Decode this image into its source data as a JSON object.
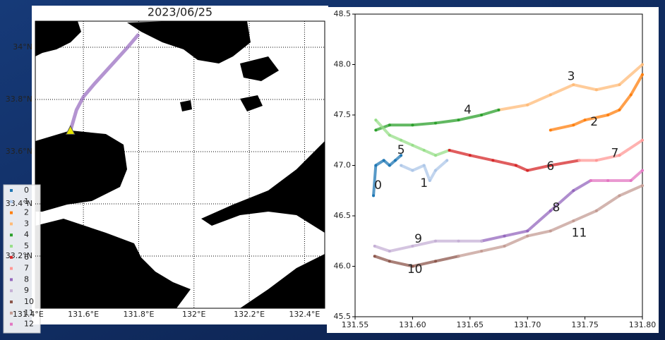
{
  "charts": [
    {
      "type": "map",
      "title": "2023/06/25",
      "xlim": [
        131.426,
        132.473
      ],
      "ylim": [
        33.0,
        34.1
      ],
      "xticks": [
        {
          "value": 131.4,
          "label": "131.4°E"
        },
        {
          "value": 131.6,
          "label": "131.6°E"
        },
        {
          "value": 131.8,
          "label": "131.8°E"
        },
        {
          "value": 132.0,
          "label": "132°E"
        },
        {
          "value": 132.2,
          "label": "132.2°E"
        },
        {
          "value": 132.4,
          "label": "132.4°E"
        }
      ],
      "yticks": [
        {
          "value": 33.2,
          "label": "33.2°N"
        },
        {
          "value": 33.4,
          "label": "33.4°N"
        },
        {
          "value": 33.6,
          "label": "33.6°N"
        },
        {
          "value": 33.8,
          "label": "33.8°N"
        },
        {
          "value": 34.0,
          "label": "34°N"
        }
      ],
      "grid": true,
      "track": {
        "color": "#9467bd",
        "x": [
          131.553,
          131.575,
          131.6,
          131.64,
          131.7,
          131.76,
          131.8
        ],
        "y": [
          33.68,
          33.76,
          33.81,
          33.86,
          33.93,
          34.0,
          34.05
        ]
      },
      "start": {
        "color": "#e8e800",
        "x": 131.553,
        "y": 33.68
      },
      "series": [
        {
          "name": "0",
          "color": "#1f77b4"
        },
        {
          "name": "1",
          "color": "#aec7e8"
        },
        {
          "name": "2",
          "color": "#ff7f0e"
        },
        {
          "name": "3",
          "color": "#ffbb78"
        },
        {
          "name": "4",
          "color": "#2ca02c"
        },
        {
          "name": "5",
          "color": "#98df8a"
        },
        {
          "name": "6",
          "color": "#d62728"
        },
        {
          "name": "7",
          "color": "#ff9896"
        },
        {
          "name": "8",
          "color": "#9467bd"
        },
        {
          "name": "9",
          "color": "#c5b0d5"
        },
        {
          "name": "10",
          "color": "#8c564b"
        },
        {
          "name": "11",
          "color": "#c49c94"
        },
        {
          "name": "12",
          "color": "#e377c2"
        }
      ]
    },
    {
      "type": "scatter",
      "xlim": [
        131.55,
        131.8
      ],
      "ylim": [
        45.5,
        48.5
      ],
      "xticks": [
        131.55,
        {
          "value": 131.6,
          "label": "131.60"
        },
        131.65,
        {
          "value": 131.7,
          "label": "131.70"
        },
        131.75,
        {
          "value": 131.8,
          "label": "131.80"
        }
      ],
      "yticks": [
        45.5,
        {
          "value": 46,
          "label": "46.0"
        },
        46.5,
        {
          "value": 47,
          "label": "47.0"
        },
        47.5,
        {
          "value": 48,
          "label": "48.0"
        },
        48.5
      ],
      "series": [
        {
          "color": "#1f77b4",
          "x": [
            131.566,
            131.568,
            131.575,
            131.58,
            131.585,
            131.59
          ],
          "values": [
            46.7,
            47.0,
            47.05,
            47.0,
            47.05,
            47.1
          ]
        },
        {
          "color": "#aec7e8",
          "x": [
            131.59,
            131.6,
            131.61,
            131.615,
            131.62,
            131.63
          ],
          "values": [
            47.0,
            46.95,
            47.0,
            46.85,
            46.95,
            47.05
          ]
        },
        {
          "color": "#ff7f0e",
          "x": [
            131.72,
            131.74,
            131.75,
            131.77,
            131.78,
            131.79,
            131.8
          ],
          "values": [
            47.35,
            47.4,
            47.45,
            47.5,
            47.55,
            47.7,
            47.9
          ]
        },
        {
          "color": "#ffbb78",
          "x": [
            131.675,
            131.7,
            131.72,
            131.74,
            131.76,
            131.78,
            131.8
          ],
          "values": [
            47.55,
            47.6,
            47.7,
            47.8,
            47.75,
            47.8,
            48.0
          ]
        },
        {
          "color": "#2ca02c",
          "x": [
            131.568,
            131.58,
            131.6,
            131.62,
            131.64,
            131.66,
            131.675
          ],
          "values": [
            47.35,
            47.4,
            47.4,
            47.42,
            47.45,
            47.5,
            47.55
          ]
        },
        {
          "color": "#98df8a",
          "x": [
            131.568,
            131.58,
            131.59,
            131.6,
            131.61,
            131.62,
            131.632
          ],
          "values": [
            47.45,
            47.3,
            47.25,
            47.2,
            47.15,
            47.1,
            47.15
          ]
        },
        {
          "color": "#d62728",
          "x": [
            131.632,
            131.65,
            131.67,
            131.69,
            131.7,
            131.72,
            131.745
          ],
          "values": [
            47.15,
            47.1,
            47.05,
            47.0,
            46.95,
            47.0,
            47.05
          ]
        },
        {
          "color": "#ff9896",
          "x": [
            131.745,
            131.76,
            131.78,
            131.8
          ],
          "values": [
            47.05,
            47.05,
            47.1,
            47.25
          ]
        },
        {
          "color": "#9467bd",
          "x": [
            131.66,
            131.68,
            131.7,
            131.72,
            131.74,
            131.755
          ],
          "values": [
            46.25,
            46.3,
            46.35,
            46.55,
            46.75,
            46.85
          ]
        },
        {
          "color": "#c5b0d5",
          "x": [
            131.567,
            131.58,
            131.6,
            131.62,
            131.64,
            131.66
          ],
          "values": [
            46.2,
            46.15,
            46.2,
            46.25,
            46.25,
            46.25
          ]
        },
        {
          "color": "#8c564b",
          "x": [
            131.567,
            131.58,
            131.6,
            131.62,
            131.64
          ],
          "values": [
            46.1,
            46.05,
            46.0,
            46.05,
            46.1
          ]
        },
        {
          "color": "#c49c94",
          "x": [
            131.64,
            131.66,
            131.68,
            131.7,
            131.72,
            131.74,
            131.76,
            131.78,
            131.8
          ],
          "values": [
            46.1,
            46.15,
            46.2,
            46.3,
            46.35,
            46.45,
            46.55,
            46.7,
            46.8
          ]
        },
        {
          "color": "#e377c2",
          "x": [
            131.755,
            131.77,
            131.79,
            131.8
          ],
          "values": [
            46.85,
            46.85,
            46.85,
            46.95
          ]
        }
      ],
      "annotations": [
        {
          "text": "0",
          "x": 131.57,
          "y": 46.8
        },
        {
          "text": "1",
          "x": 131.61,
          "y": 46.82
        },
        {
          "text": "2",
          "x": 131.758,
          "y": 47.43
        },
        {
          "text": "3",
          "x": 131.738,
          "y": 47.88
        },
        {
          "text": "4",
          "x": 131.648,
          "y": 47.55
        },
        {
          "text": "5",
          "x": 131.59,
          "y": 47.15
        },
        {
          "text": "6",
          "x": 131.72,
          "y": 46.99
        },
        {
          "text": "7",
          "x": 131.776,
          "y": 47.12
        },
        {
          "text": "8",
          "x": 131.725,
          "y": 46.58
        },
        {
          "text": "9",
          "x": 131.605,
          "y": 46.27
        },
        {
          "text": "10",
          "x": 131.602,
          "y": 45.97
        },
        {
          "text": "11",
          "x": 131.745,
          "y": 46.33
        }
      ]
    }
  ]
}
